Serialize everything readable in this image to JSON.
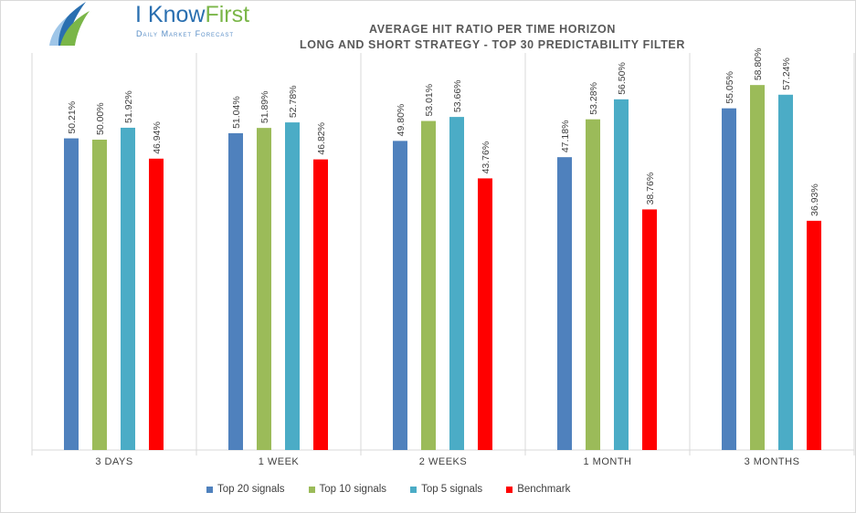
{
  "logo": {
    "name_part1": "I Know",
    "name_part2": "First",
    "tagline": "Daily Market Forecast",
    "colors": {
      "blue": "#2a6fb0",
      "green": "#7ab648"
    }
  },
  "chart_data": {
    "type": "bar",
    "title": "AVERAGE HIT RATIO PER TIME HORIZON",
    "subtitle": "LONG AND SHORT STRATEGY - TOP 30 PREDICTABILITY FILTER",
    "xlabel": "",
    "ylabel": "",
    "categories": [
      "3 DAYS",
      "1 WEEK",
      "2 WEEKS",
      "1 MONTH",
      "3 MONTHS"
    ],
    "series": [
      {
        "name": "Top 20 signals",
        "color": "#4f81bd",
        "values": [
          50.21,
          51.04,
          49.8,
          47.18,
          55.05
        ],
        "labels": [
          "50.21%",
          "51.04%",
          "49.80%",
          "47.18%",
          "55.05%"
        ]
      },
      {
        "name": "Top 10 signals",
        "color": "#9bbb59",
        "values": [
          50.0,
          51.89,
          53.01,
          53.28,
          58.8
        ],
        "labels": [
          "50.00%",
          "51.89%",
          "53.01%",
          "53.28%",
          "58.80%"
        ]
      },
      {
        "name": "Top 5 signals",
        "color": "#4bacc6",
        "values": [
          51.92,
          52.78,
          53.66,
          56.5,
          57.24
        ],
        "labels": [
          "51.92%",
          "52.78%",
          "53.66%",
          "56.50%",
          "57.24%"
        ]
      },
      {
        "name": "Benchmark",
        "color": "#ff0000",
        "values": [
          46.94,
          46.82,
          43.76,
          38.76,
          36.93
        ],
        "labels": [
          "46.94%",
          "46.82%",
          "43.76%",
          "38.76%",
          "36.93%"
        ]
      }
    ],
    "ylim": [
      0,
      70
    ],
    "grid": false,
    "legend_position": "bottom"
  }
}
